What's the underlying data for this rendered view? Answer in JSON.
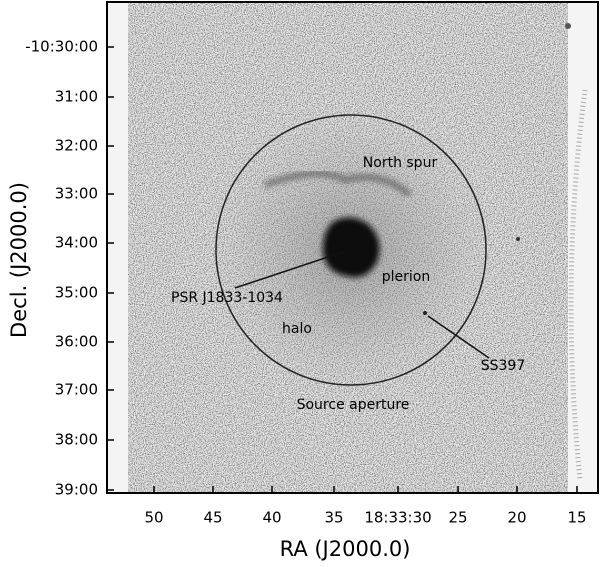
{
  "axes": {
    "x_label": "RA (J2000.0)",
    "y_label": "Decl. (J2000.0)",
    "x_ticks": [
      "50",
      "45",
      "40",
      "35",
      "18:33:30",
      "25",
      "20",
      "15"
    ],
    "y_ticks": [
      "-10:30:00",
      "31:00",
      "32:00",
      "33:00",
      "34:00",
      "35:00",
      "36:00",
      "37:00",
      "38:00",
      "39:00"
    ]
  },
  "annotations": {
    "north_spur": "North spur",
    "plerion": "plerion",
    "pulsar": "PSR J1833-1034",
    "halo": "halo",
    "star": "SS397",
    "aperture": "Source aperture"
  }
}
